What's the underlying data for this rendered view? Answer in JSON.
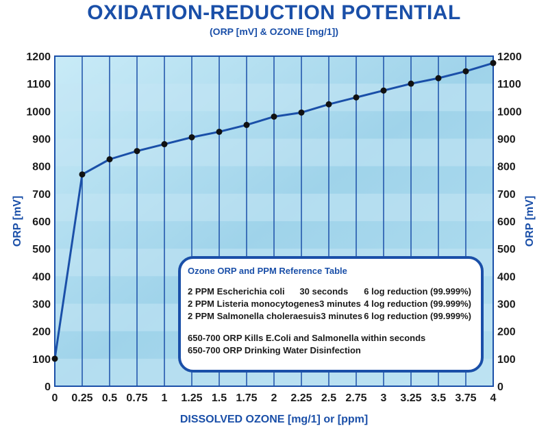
{
  "title": "OXIDATION-REDUCTION POTENTIAL",
  "subtitle": "(ORP [mV] & OZONE [mg/1])",
  "colors": {
    "primary": "#1a4fa8",
    "background": "#a9d8ec",
    "band": "#c4e6f4",
    "text": "#1a1a1a"
  },
  "chart_data": {
    "type": "line",
    "title": "OXIDATION-REDUCTION POTENTIAL",
    "subtitle": "(ORP [mV] & OZONE [mg/1])",
    "xlabel": "DISSOLVED OZONE [mg/1] or [ppm]",
    "ylabel": "ORP [mV]",
    "ylabel_right": "ORP [mV]",
    "xlim": [
      0,
      4
    ],
    "ylim": [
      0,
      1200
    ],
    "xticks": [
      "0",
      "0.25",
      "0.5",
      "0.75",
      "1",
      "1.25",
      "1.5",
      "1.75",
      "2",
      "2.25",
      "2.5",
      "2.75",
      "3",
      "3.25",
      "3.5",
      "3.75",
      "4"
    ],
    "yticks": [
      "0",
      "100",
      "200",
      "300",
      "400",
      "500",
      "600",
      "700",
      "800",
      "900",
      "1000",
      "1100",
      "1200"
    ],
    "grid": true,
    "series": [
      {
        "name": "ORP",
        "x": [
          0,
          0.25,
          0.5,
          0.75,
          1,
          1.25,
          1.5,
          1.75,
          2,
          2.25,
          2.5,
          2.75,
          3,
          3.25,
          3.5,
          3.75,
          4
        ],
        "y": [
          100,
          770,
          825,
          855,
          880,
          905,
          925,
          950,
          980,
          995,
          1025,
          1050,
          1075,
          1100,
          1120,
          1145,
          1175
        ]
      }
    ]
  },
  "reference_table": {
    "title": "Ozone ORP and PPM Reference Table",
    "rows": [
      {
        "organism": "2 PPM Escherichia  coli",
        "time": "30 seconds",
        "result": "6 log reduction (99.999%)"
      },
      {
        "organism": "2 PPM Listeria monocytogenes",
        "time": "3 minutes",
        "result": "4 log reduction (99.999%)"
      },
      {
        "organism": "2 PPM Salmonella choleraesuis",
        "time": "3 minutes",
        "result": "6 log reduction (99.999%)"
      }
    ],
    "notes": [
      "650-700 ORP  Kills E.Coli and Salmonella within seconds",
      "650-700 ORP  Drinking Water Disinfection"
    ]
  }
}
